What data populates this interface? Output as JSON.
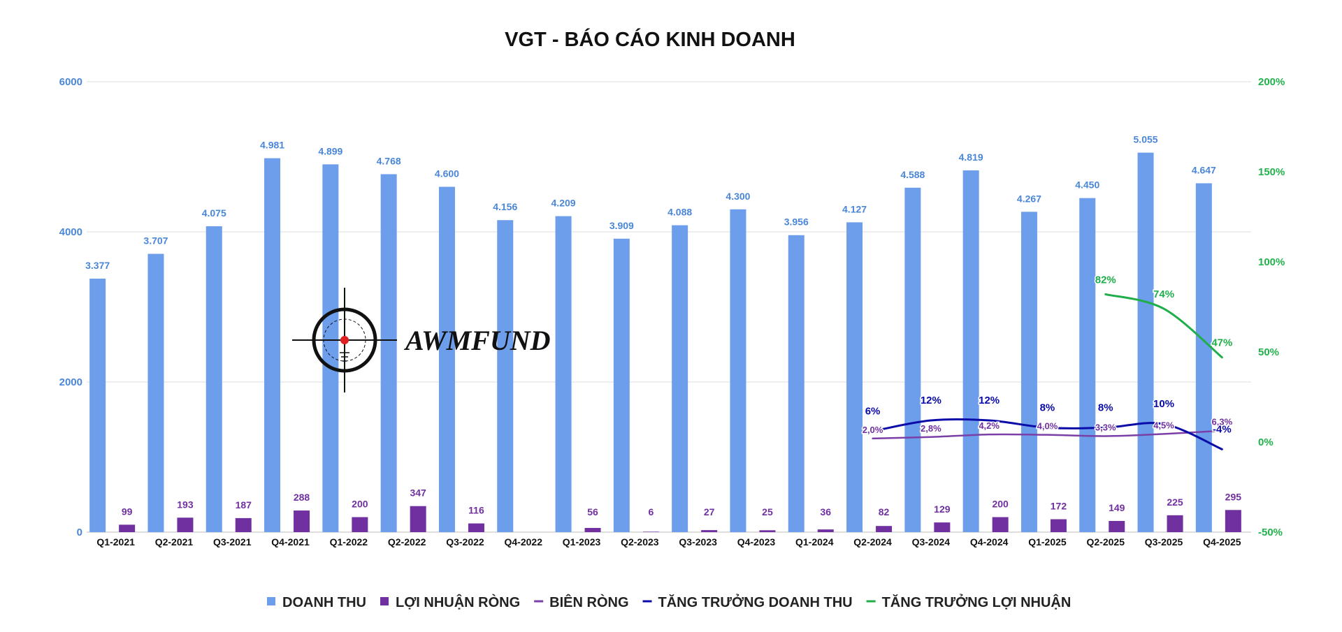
{
  "chart_data": {
    "type": "bar",
    "title": "VGT - BÁO CÁO KINH DOANH",
    "categories": [
      "Q1-2021",
      "Q2-2021",
      "Q3-2021",
      "Q4-2021",
      "Q1-2022",
      "Q2-2022",
      "Q3-2022",
      "Q4-2022",
      "Q1-2023",
      "Q2-2023",
      "Q3-2023",
      "Q4-2023",
      "Q1-2024",
      "Q2-2024",
      "Q3-2024",
      "Q4-2024",
      "Q1-2025",
      "Q2-2025",
      "Q3-2025",
      "Q4-2025"
    ],
    "y_left": {
      "ticks": [
        "0",
        "2000",
        "4000",
        "6000"
      ],
      "range": [
        0,
        6000
      ]
    },
    "y_right": {
      "ticks": [
        "-50%",
        "0%",
        "50%",
        "100%",
        "150%",
        "200%"
      ],
      "range": [
        -50,
        200
      ]
    },
    "grid": true,
    "legend_position": "bottom",
    "series": [
      {
        "name": "DOANH THU",
        "kind": "bar",
        "axis": "left",
        "color": "#6d9eeb",
        "values": [
          3377,
          3707,
          4075,
          4981,
          4899,
          4768,
          4600,
          4156,
          4209,
          3909,
          4088,
          4300,
          3956,
          4127,
          4588,
          4819,
          4267,
          4450,
          5055,
          4647
        ],
        "labels": [
          "3.377",
          "3.707",
          "4.075",
          "4.981",
          "4.899",
          "4.768",
          "4.600",
          "4.156",
          "4.209",
          "3.909",
          "4.088",
          "4.300",
          "3.956",
          "4.127",
          "4.588",
          "4.819",
          "4.267",
          "4.450",
          "5.055",
          "4.647"
        ]
      },
      {
        "name": "LỢI NHUẬN RÒNG",
        "kind": "bar",
        "axis": "left",
        "color": "#7030a0",
        "values": [
          99,
          193,
          187,
          288,
          200,
          347,
          116,
          null,
          56,
          6,
          27,
          25,
          36,
          82,
          129,
          200,
          172,
          149,
          225,
          295
        ],
        "labels": [
          "99",
          "193",
          "187",
          "288",
          "200",
          "347",
          "116",
          "",
          "56",
          "6",
          "27",
          "25",
          "36",
          "82",
          "129",
          "200",
          "172",
          "149",
          "225",
          "295"
        ]
      },
      {
        "name": "BIÊN RÒNG",
        "kind": "line",
        "axis": "right",
        "color": "#7b3fa8",
        "values": [
          null,
          null,
          null,
          null,
          null,
          null,
          null,
          null,
          null,
          null,
          null,
          null,
          null,
          2.0,
          2.8,
          4.2,
          4.0,
          3.3,
          4.5,
          6.3
        ],
        "labels": [
          "",
          "",
          "",
          "",
          "",
          "",
          "",
          "",
          "",
          "",
          "",
          "",
          "",
          "2,0%",
          "2,8%",
          "4,2%",
          "4,0%",
          "3,3%",
          "4,5%",
          "6,3%"
        ]
      },
      {
        "name": "TĂNG TRƯỞNG DOANH THU",
        "kind": "line",
        "axis": "right",
        "color": "#0b0ba8",
        "values": [
          null,
          null,
          null,
          null,
          null,
          null,
          null,
          null,
          null,
          null,
          null,
          null,
          null,
          6,
          12,
          12,
          8,
          8,
          10,
          -4
        ],
        "labels": [
          "",
          "",
          "",
          "",
          "",
          "",
          "",
          "",
          "",
          "",
          "",
          "",
          "",
          "6%",
          "12%",
          "12%",
          "8%",
          "8%",
          "10%",
          "-4%"
        ]
      },
      {
        "name": "TĂNG TRƯỞNG LỢI NHUẬN",
        "kind": "line",
        "axis": "right",
        "color": "#1fae4a",
        "values": [
          null,
          null,
          null,
          null,
          null,
          null,
          null,
          null,
          null,
          null,
          null,
          null,
          null,
          null,
          null,
          null,
          null,
          82,
          74,
          47
        ],
        "labels": [
          "",
          "",
          "",
          "",
          "",
          "",
          "",
          "",
          "",
          "",
          "",
          "",
          "",
          "",
          "",
          "",
          "",
          "82%",
          "74%",
          "47%"
        ]
      }
    ]
  },
  "watermark": {
    "text": "AWMFUND",
    "icon": "crosshair-icon"
  }
}
